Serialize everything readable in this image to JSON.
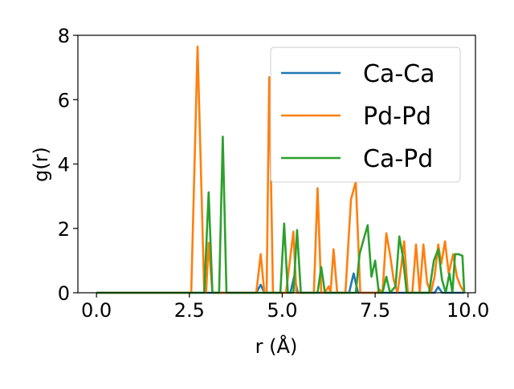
{
  "chart_data": {
    "type": "line",
    "title": "",
    "xlabel": "r (Å)",
    "ylabel": "g(r)",
    "xlim": [
      -0.5,
      10.2
    ],
    "ylim": [
      0,
      8
    ],
    "xticks": [
      0.0,
      2.5,
      5.0,
      7.5,
      10.0
    ],
    "xtick_labels": [
      "0.0",
      "2.5",
      "5.0",
      "7.5",
      "10.0"
    ],
    "yticks": [
      0,
      2,
      4,
      6,
      8
    ],
    "ytick_labels": [
      "0",
      "2",
      "4",
      "6",
      "8"
    ],
    "grid": false,
    "legend_position": "upper right",
    "series": [
      {
        "name": "Ca-Ca",
        "color": "#1f77b4",
        "points": [
          [
            0.0,
            0
          ],
          [
            4.3,
            0
          ],
          [
            4.42,
            0.25
          ],
          [
            4.52,
            0
          ],
          [
            5.22,
            0
          ],
          [
            5.32,
            0.5
          ],
          [
            5.42,
            0
          ],
          [
            6.8,
            0
          ],
          [
            6.92,
            0.6
          ],
          [
            7.04,
            0
          ],
          [
            9.1,
            0
          ],
          [
            9.2,
            0.18
          ],
          [
            9.3,
            0
          ],
          [
            9.9,
            0
          ]
        ]
      },
      {
        "name": "Pd-Pd",
        "color": "#ff7f0e",
        "points": [
          [
            0.0,
            0
          ],
          [
            2.55,
            0
          ],
          [
            2.72,
            7.65
          ],
          [
            2.9,
            0
          ],
          [
            2.95,
            0
          ],
          [
            3.02,
            1.55
          ],
          [
            3.12,
            0
          ],
          [
            4.3,
            0
          ],
          [
            4.42,
            1.2
          ],
          [
            4.52,
            0
          ],
          [
            4.58,
            0
          ],
          [
            4.65,
            6.7
          ],
          [
            4.75,
            0
          ],
          [
            5.1,
            0
          ],
          [
            5.3,
            1.9
          ],
          [
            5.38,
            0
          ],
          [
            5.85,
            0
          ],
          [
            5.95,
            3.25
          ],
          [
            6.05,
            0
          ],
          [
            6.15,
            0
          ],
          [
            6.25,
            0.2
          ],
          [
            6.3,
            0
          ],
          [
            6.38,
            1.35
          ],
          [
            6.48,
            0
          ],
          [
            6.7,
            0
          ],
          [
            6.85,
            2.9
          ],
          [
            6.98,
            3.45
          ],
          [
            7.1,
            0
          ],
          [
            7.55,
            0
          ],
          [
            7.62,
            0.1
          ],
          [
            7.7,
            0
          ],
          [
            7.8,
            1.85
          ],
          [
            7.9,
            1.2
          ],
          [
            8.0,
            0.4
          ],
          [
            8.1,
            0
          ],
          [
            8.2,
            0.8
          ],
          [
            8.28,
            1.6
          ],
          [
            8.38,
            0
          ],
          [
            8.5,
            0
          ],
          [
            8.6,
            1.5
          ],
          [
            8.7,
            0
          ],
          [
            8.8,
            1.5
          ],
          [
            8.9,
            0.3
          ],
          [
            9.0,
            0
          ],
          [
            9.1,
            0.5
          ],
          [
            9.2,
            1.5
          ],
          [
            9.28,
            0.9
          ],
          [
            9.38,
            1.6
          ],
          [
            9.48,
            0.6
          ],
          [
            9.6,
            1.2
          ],
          [
            9.7,
            0.5
          ],
          [
            9.8,
            0.2
          ],
          [
            9.9,
            0
          ]
        ]
      },
      {
        "name": "Ca-Pd",
        "color": "#2ca02c",
        "points": [
          [
            0.0,
            0
          ],
          [
            2.9,
            0
          ],
          [
            3.02,
            3.12
          ],
          [
            3.12,
            0
          ],
          [
            3.3,
            0
          ],
          [
            3.4,
            4.85
          ],
          [
            3.5,
            0
          ],
          [
            4.95,
            0
          ],
          [
            5.05,
            2.15
          ],
          [
            5.15,
            0
          ],
          [
            5.3,
            0
          ],
          [
            5.4,
            1.95
          ],
          [
            5.5,
            0
          ],
          [
            5.95,
            0
          ],
          [
            6.05,
            0.8
          ],
          [
            6.15,
            0
          ],
          [
            6.98,
            0
          ],
          [
            7.08,
            1.2
          ],
          [
            7.2,
            1.7
          ],
          [
            7.3,
            2.1
          ],
          [
            7.4,
            0.5
          ],
          [
            7.5,
            1.0
          ],
          [
            7.6,
            0
          ],
          [
            7.7,
            0
          ],
          [
            7.8,
            0.5
          ],
          [
            7.9,
            0
          ],
          [
            8.05,
            0.2
          ],
          [
            8.15,
            1.75
          ],
          [
            8.25,
            1.1
          ],
          [
            8.35,
            0
          ],
          [
            8.95,
            0
          ],
          [
            9.08,
            1.0
          ],
          [
            9.2,
            1.35
          ],
          [
            9.3,
            0.4
          ],
          [
            9.4,
            0
          ],
          [
            9.5,
            0.6
          ],
          [
            9.58,
            0
          ],
          [
            9.65,
            1.2
          ],
          [
            9.75,
            1.2
          ],
          [
            9.85,
            1.15
          ],
          [
            9.9,
            0
          ]
        ]
      }
    ]
  }
}
